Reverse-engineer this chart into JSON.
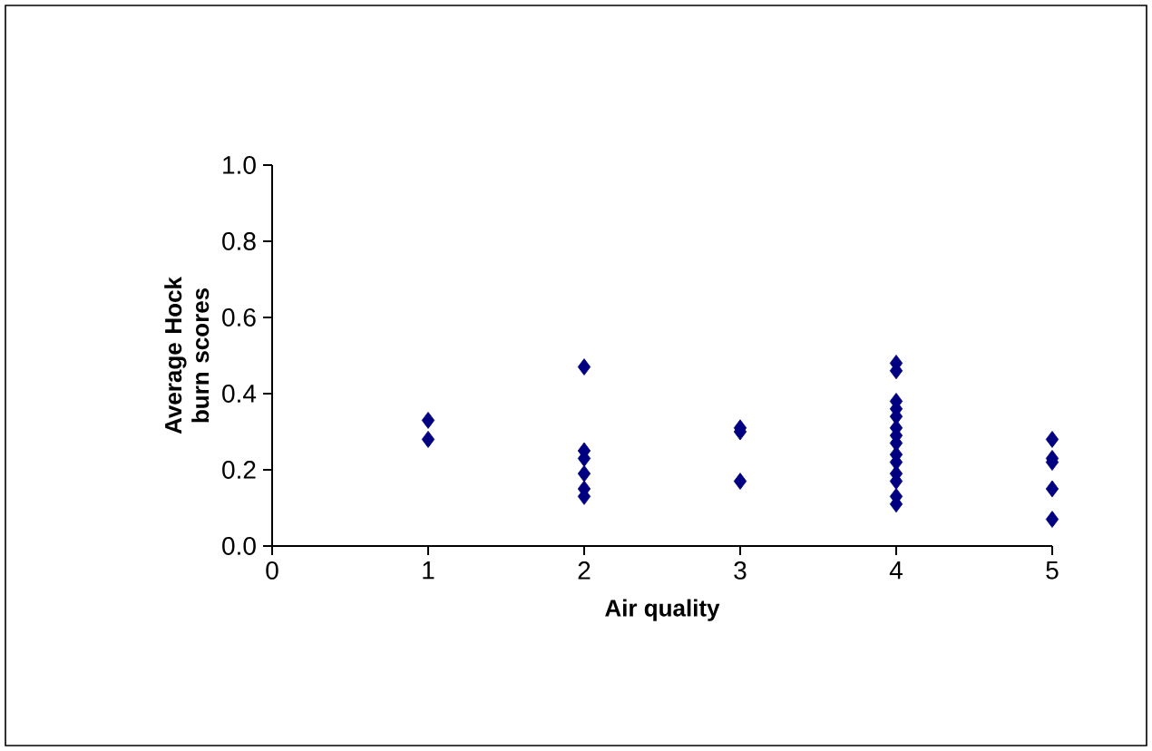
{
  "chart_data": {
    "type": "scatter",
    "xlabel": "Air quality",
    "ylabel": "Average Hock burn scores",
    "marker": "diamond",
    "xlim": [
      0,
      5
    ],
    "xticks": [
      0,
      1,
      2,
      3,
      4,
      5
    ],
    "ylim": [
      0,
      1
    ],
    "yticks": [
      {
        "value": 0,
        "label": "0.0"
      },
      {
        "value": 0.2,
        "label": "0.2"
      },
      {
        "value": 0.4,
        "label": "0.4"
      },
      {
        "value": 0.6,
        "label": "0.6"
      },
      {
        "value": 0.8,
        "label": "0.8"
      },
      {
        "value": 1,
        "label": "1.0"
      }
    ],
    "series": [
      {
        "color": "#000080",
        "x": [
          1,
          1,
          2,
          2,
          2,
          2,
          2,
          2,
          3,
          3,
          3,
          4,
          4,
          4,
          4,
          4,
          4,
          4,
          4,
          4,
          4,
          4,
          4,
          4,
          4,
          5,
          5,
          5,
          5,
          5
        ],
        "values": [
          0.33,
          0.28,
          0.47,
          0.25,
          0.23,
          0.19,
          0.15,
          0.13,
          0.31,
          0.3,
          0.17,
          0.48,
          0.46,
          0.38,
          0.36,
          0.34,
          0.31,
          0.29,
          0.27,
          0.24,
          0.22,
          0.19,
          0.17,
          0.13,
          0.11,
          0.28,
          0.23,
          0.22,
          0.15,
          0.07
        ]
      }
    ]
  }
}
